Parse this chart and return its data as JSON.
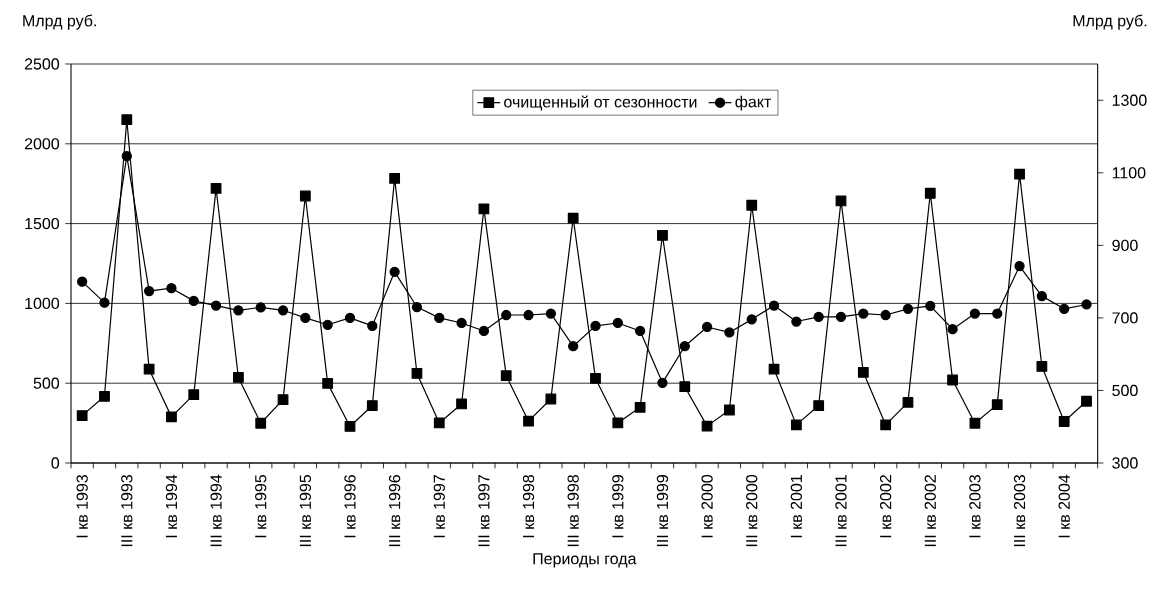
{
  "chart_data": {
    "type": "line",
    "xlabel": "Периоды года",
    "ylabel": "Млрд руб.",
    "y2label": "Млрд руб.",
    "categories": [
      "I кв 1993",
      null,
      "III кв 1993",
      null,
      "I кв 1994",
      null,
      "III кв 1994",
      null,
      "I кв 1995",
      null,
      "III кв 1995",
      null,
      "I кв 1996",
      null,
      "III кв 1996",
      null,
      "I кв 1997",
      null,
      "III кв 1997",
      null,
      "I кв 1998",
      null,
      "III кв 1998",
      null,
      "I кв 1999",
      null,
      "III кв 1999",
      null,
      "I кв 2000",
      null,
      "III кв 2000",
      null,
      "I кв 2001",
      null,
      "III кв 2001",
      null,
      "I кв 2002",
      null,
      "III кв 2002",
      null,
      "I кв 2003",
      null,
      "III кв 2003",
      null,
      "I кв 2004",
      null
    ],
    "series": [
      {
        "name": "очищенный от сезонности",
        "color": "#000000",
        "marker": "square",
        "values": [
          297,
          418,
          2151,
          588,
          289,
          428,
          1721,
          536,
          249,
          397,
          1673,
          499,
          229,
          360,
          1783,
          561,
          251,
          370,
          1592,
          547,
          262,
          401,
          1534,
          530,
          251,
          349,
          1426,
          478,
          231,
          332,
          1615,
          588,
          239,
          360,
          1642,
          568,
          239,
          380,
          1690,
          520,
          249,
          366,
          1810,
          605,
          260,
          387
        ]
      },
      {
        "name": "факт",
        "color": "#000000",
        "marker": "circle",
        "axis": "y2",
        "values": [
          800,
          742,
          1146,
          774,
          782,
          747,
          734,
          721,
          729,
          721,
          700,
          681,
          700,
          678,
          827,
          730,
          700,
          686,
          664,
          708,
          708,
          712,
          622,
          678,
          686,
          664,
          521,
          622,
          675,
          660,
          696,
          734,
          690,
          703,
          703,
          712,
          708,
          725,
          733,
          669,
          712,
          712,
          843,
          760,
          725,
          737
        ]
      }
    ],
    "ylim": [
      0,
      2500
    ],
    "yticks": [
      0,
      500,
      1000,
      1500,
      2000,
      2500
    ],
    "y2lim": [
      300,
      1400
    ],
    "y2ticks": [
      300,
      500,
      700,
      900,
      1100,
      1300
    ],
    "grid": "y",
    "legend": "top",
    "line_style": "solid"
  }
}
